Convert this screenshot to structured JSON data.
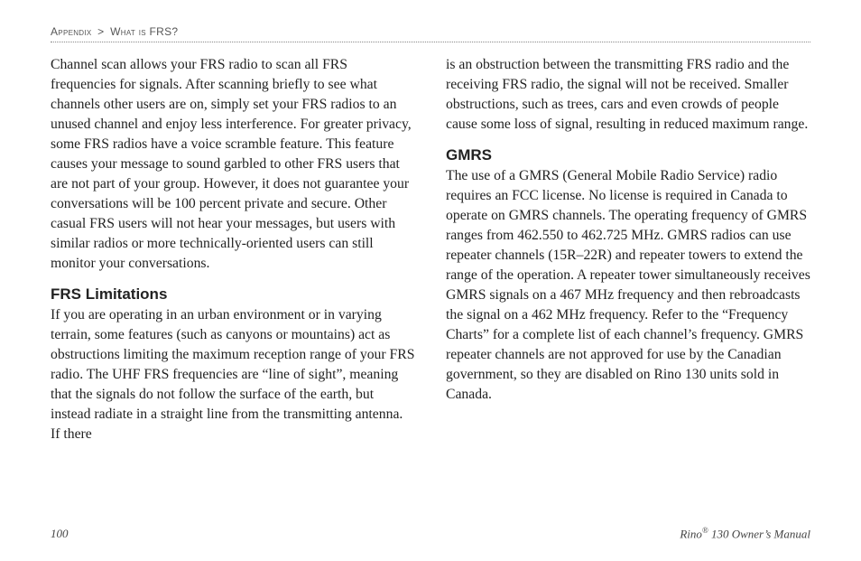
{
  "breadcrumb": {
    "section": "Appendix",
    "separator": ">",
    "subsection": "What is FRS?"
  },
  "left_column": {
    "para1": "Channel scan allows your FRS radio to scan all FRS frequencies for signals. After scanning briefly to see what channels other users are on, simply set your FRS radios to an unused channel and enjoy less interference. For greater privacy, some FRS radios have a voice scramble feature. This feature causes your message to sound garbled to other FRS users that are not part of your group. However, it does not guarantee your conversations will be 100 percent private and secure. Other casual FRS users will not hear your messages, but users with similar radios or more technically-oriented users can still monitor your conversations.",
    "heading1": "FRS Limitations",
    "para2": "If you are operating in an urban environment or in varying terrain, some features (such as canyons or mountains) act as obstructions limiting the maximum reception range of your FRS radio. The UHF FRS frequencies are “line of sight”, meaning that the signals do not follow the surface of the earth, but instead radiate in a straight line from the transmitting antenna. If there"
  },
  "right_column": {
    "para1": "is an obstruction between the transmitting FRS radio and the receiving FRS radio, the signal will not be received. Smaller obstructions, such as trees, cars and even crowds of people cause some loss of signal, resulting in reduced maximum range.",
    "heading1": "GMRS",
    "para2": "The use of a GMRS (General Mobile Radio Service) radio requires an FCC license. No license is required in Canada to operate on GMRS channels. The operating frequency of GMRS ranges from 462.550 to 462.725 MHz. GMRS radios can use repeater channels (15R–22R) and repeater towers to extend the range of the operation. A repeater tower simultaneously receives GMRS signals on a 467 MHz frequency and then rebroadcasts the signal on a 462 MHz frequency. Refer to the “Frequency Charts” for a complete list of each channel’s frequency. GMRS repeater channels are not approved for use by the Canadian government, so they are disabled on Rino 130 units sold in Canada."
  },
  "footer": {
    "page_number": "100",
    "product": "Rino",
    "reg": "®",
    "model_text": " 130 Owner’s Manual"
  }
}
